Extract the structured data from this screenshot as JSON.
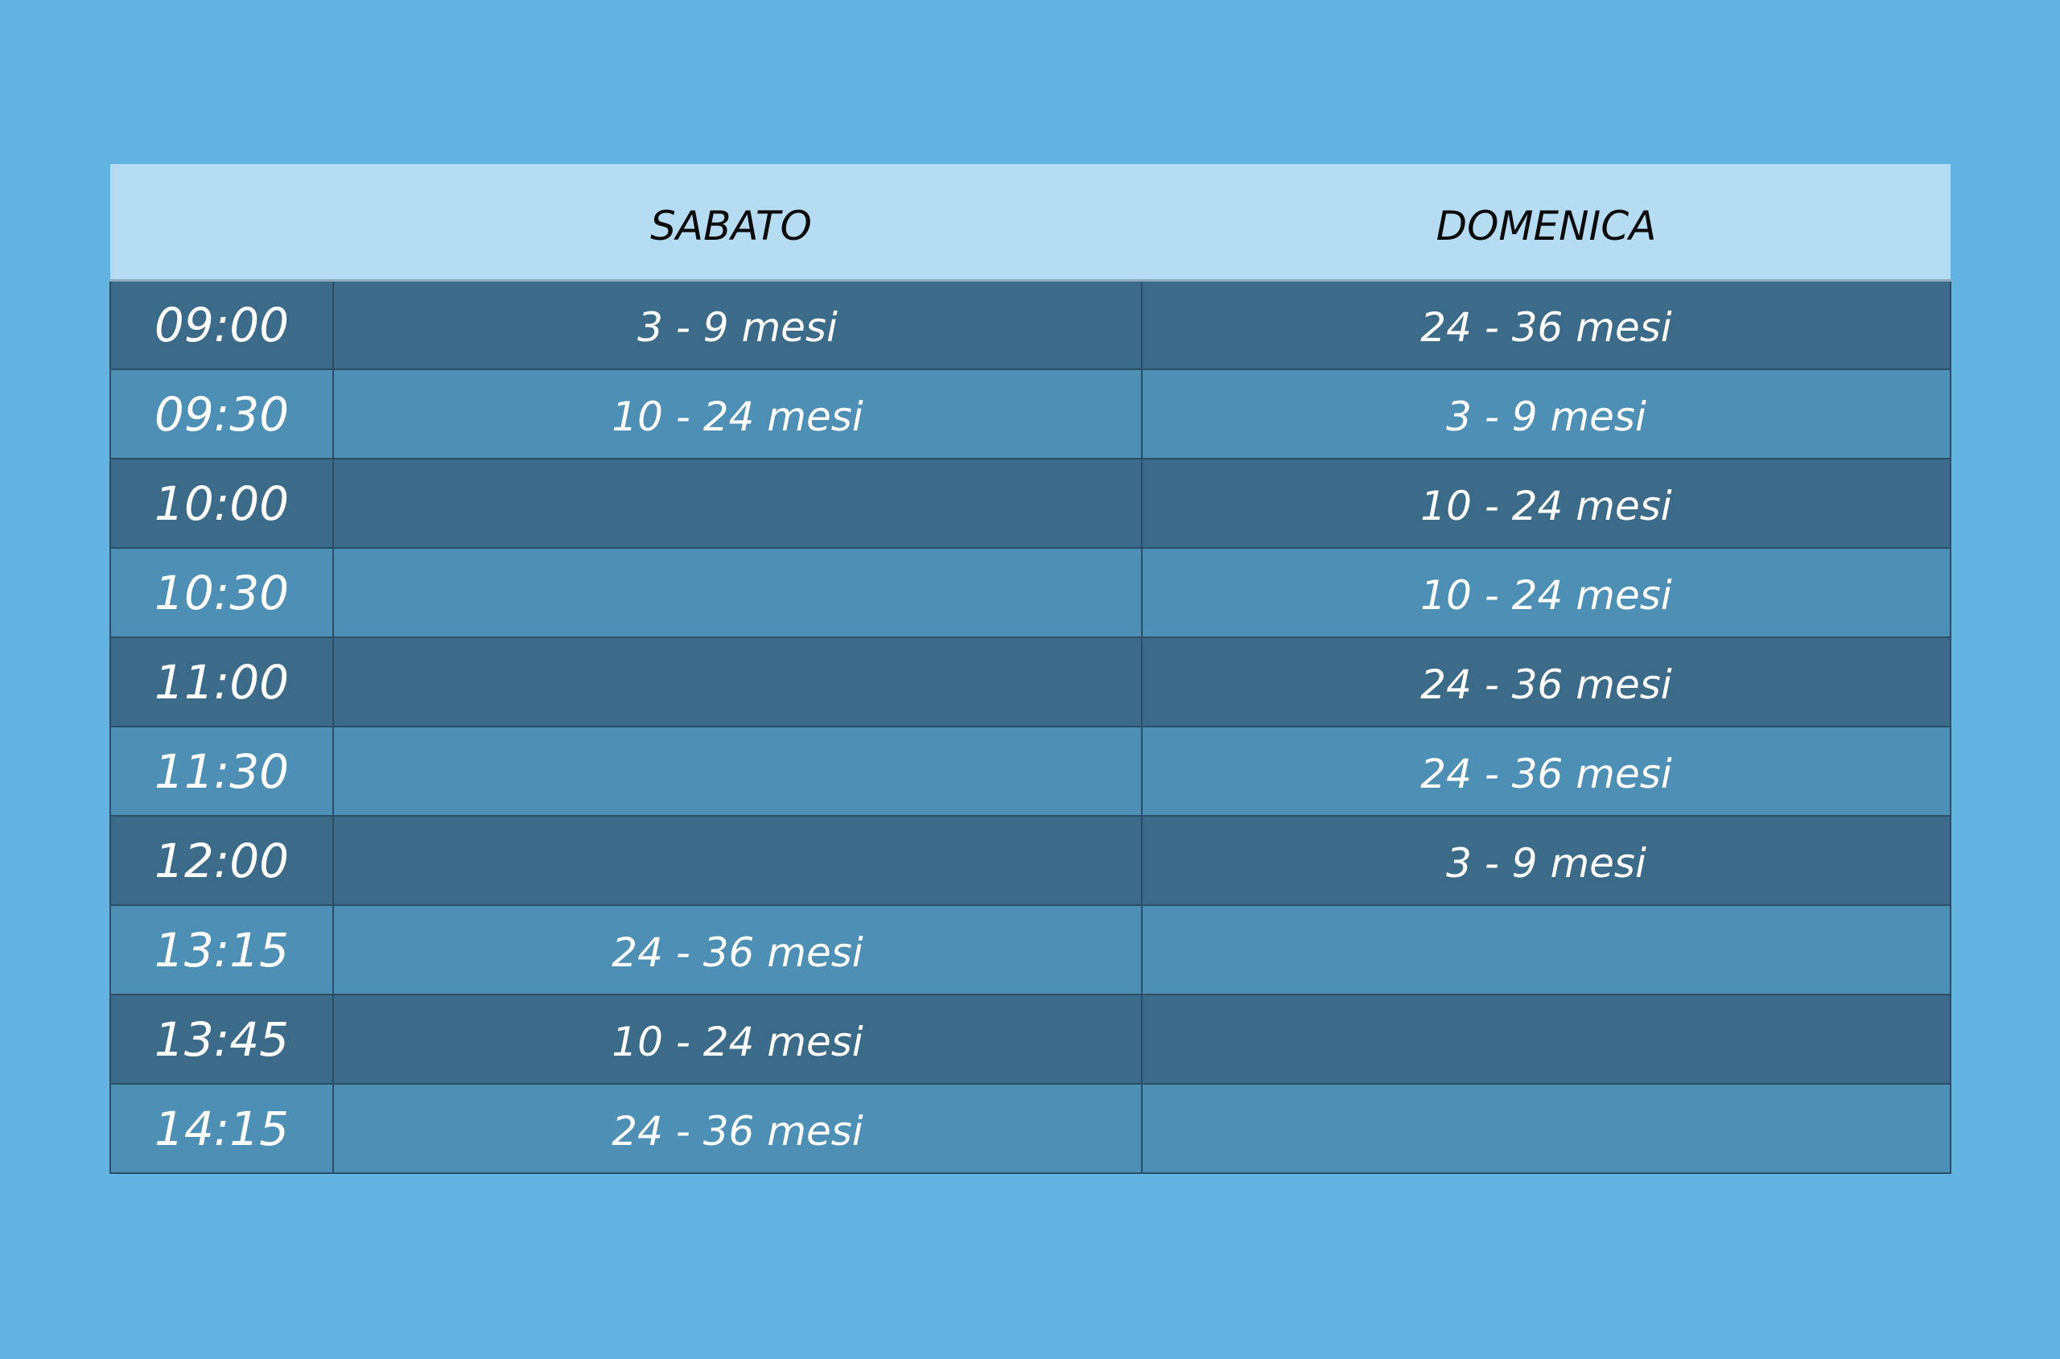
{
  "header": {
    "time_col": "",
    "sabato": "SABATO",
    "domenica": "DOMENICA"
  },
  "rows": [
    {
      "time": "09:00",
      "sabato": "3 - 9 mesi",
      "domenica": "24 - 36 mesi"
    },
    {
      "time": "09:30",
      "sabato": "10 - 24 mesi",
      "domenica": "3 - 9 mesi"
    },
    {
      "time": "10:00",
      "sabato": "",
      "domenica": "10 - 24 mesi"
    },
    {
      "time": "10:30",
      "sabato": "",
      "domenica": "10 - 24 mesi"
    },
    {
      "time": "11:00",
      "sabato": "",
      "domenica": "24 - 36 mesi"
    },
    {
      "time": "11:30",
      "sabato": "",
      "domenica": "24 - 36 mesi"
    },
    {
      "time": "12:00",
      "sabato": "",
      "domenica": "3 - 9 mesi"
    },
    {
      "time": "13:15",
      "sabato": "24 - 36 mesi",
      "domenica": ""
    },
    {
      "time": "13:45",
      "sabato": "10 - 24 mesi",
      "domenica": ""
    },
    {
      "time": "14:15",
      "sabato": "24 - 36 mesi",
      "domenica": ""
    }
  ],
  "colors": {
    "background": "#62b2e2",
    "header_row": "#b5dcf2",
    "row_dark": "#3b6b89",
    "row_light": "#4d8fb5"
  }
}
